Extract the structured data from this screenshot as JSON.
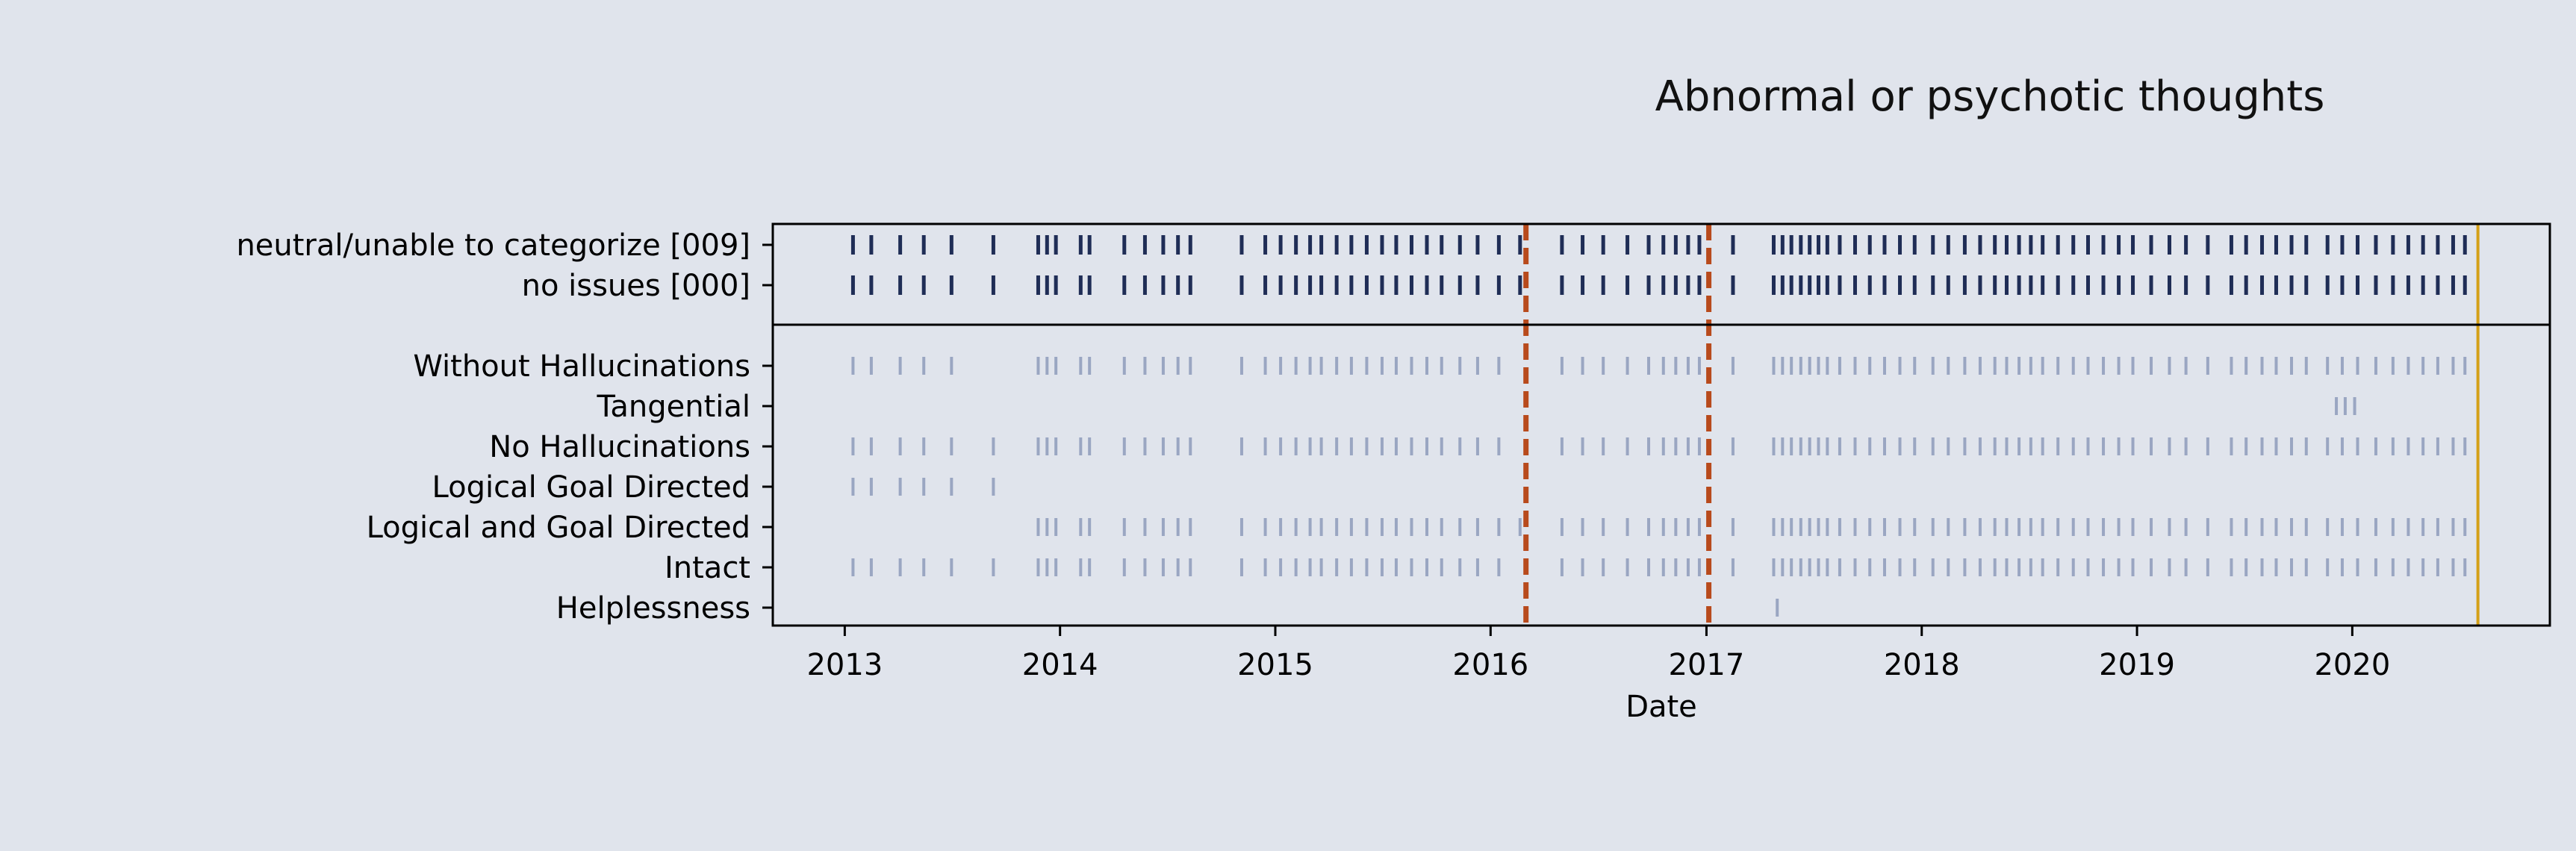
{
  "chart_data": {
    "type": "event-plot",
    "title": "Abnormal or psychotic thoughts",
    "xlabel": "Date",
    "x_ticks": [
      "2013",
      "2014",
      "2015",
      "2016",
      "2017",
      "2018",
      "2019",
      "2020"
    ],
    "xlim": [
      "2012-09-01",
      "2020-12-01"
    ],
    "rows_top": [
      "neutral/unable to categorize [009]",
      "no issues [000]"
    ],
    "rows_bottom": [
      "Without Hallucinations",
      "Tangential",
      "No Hallucinations",
      "Logical Goal Directed",
      "Logical and Goal Directed",
      "Intact",
      "Helplessness"
    ],
    "events_by_row": {
      "neutral/unable to categorize [009]": [
        "2013-01-15",
        "2013-02-15",
        "2013-04-05",
        "2013-05-15",
        "2013-07-01",
        "2013-09-10",
        "2013-11-25",
        "2013-12-10",
        "2013-12-25",
        "2014-02-05",
        "2014-02-20",
        "2014-04-20",
        "2014-05-25",
        "2014-06-25",
        "2014-07-20",
        "2014-08-10",
        "2014-11-05",
        "2014-12-15",
        "2015-01-10",
        "2015-02-05",
        "2015-03-01",
        "2015-03-20",
        "2015-04-15",
        "2015-05-10",
        "2015-06-05",
        "2015-07-01",
        "2015-07-25",
        "2015-08-20",
        "2015-09-15",
        "2015-10-10",
        "2015-11-10",
        "2015-12-10",
        "2016-01-15",
        "2016-02-20",
        "2016-05-01",
        "2016-06-05",
        "2016-07-10",
        "2016-08-20",
        "2016-09-25",
        "2016-10-20",
        "2016-11-10",
        "2016-12-01",
        "2016-12-20",
        "2017-02-15",
        "2017-04-25",
        "2017-05-10",
        "2017-05-25",
        "2017-06-10",
        "2017-06-25",
        "2017-07-10",
        "2017-07-25",
        "2017-08-15",
        "2017-09-10",
        "2017-10-05",
        "2017-10-30",
        "2017-11-25",
        "2017-12-20",
        "2018-01-20",
        "2018-02-15",
        "2018-03-15",
        "2018-04-10",
        "2018-05-05",
        "2018-05-25",
        "2018-06-15",
        "2018-07-05",
        "2018-07-25",
        "2018-08-20",
        "2018-09-15",
        "2018-10-10",
        "2018-11-05",
        "2018-12-01",
        "2018-12-25",
        "2019-01-25",
        "2019-02-25",
        "2019-03-25",
        "2019-05-01",
        "2019-06-10",
        "2019-07-05",
        "2019-08-01",
        "2019-08-25",
        "2019-09-20",
        "2019-10-15",
        "2019-11-20",
        "2019-12-15",
        "2020-01-10",
        "2020-02-10",
        "2020-03-10",
        "2020-04-05",
        "2020-04-30",
        "2020-05-25",
        "2020-06-20",
        "2020-07-10"
      ],
      "no issues [000]": [
        "2013-01-15",
        "2013-02-15",
        "2013-04-05",
        "2013-05-15",
        "2013-07-01",
        "2013-09-10",
        "2013-11-25",
        "2013-12-10",
        "2013-12-25",
        "2014-02-05",
        "2014-02-20",
        "2014-04-20",
        "2014-05-25",
        "2014-06-25",
        "2014-07-20",
        "2014-08-10",
        "2014-11-05",
        "2014-12-15",
        "2015-01-10",
        "2015-02-05",
        "2015-03-01",
        "2015-03-20",
        "2015-04-15",
        "2015-05-10",
        "2015-06-05",
        "2015-07-01",
        "2015-07-25",
        "2015-08-20",
        "2015-09-15",
        "2015-10-10",
        "2015-11-10",
        "2015-12-10",
        "2016-01-15",
        "2016-02-20",
        "2016-05-01",
        "2016-06-05",
        "2016-07-10",
        "2016-08-20",
        "2016-09-25",
        "2016-10-20",
        "2016-11-10",
        "2016-12-01",
        "2016-12-20",
        "2017-02-15",
        "2017-04-25",
        "2017-05-10",
        "2017-05-25",
        "2017-06-10",
        "2017-06-25",
        "2017-07-10",
        "2017-07-25",
        "2017-08-15",
        "2017-09-10",
        "2017-10-05",
        "2017-10-30",
        "2017-11-25",
        "2017-12-20",
        "2018-01-20",
        "2018-02-15",
        "2018-03-15",
        "2018-04-10",
        "2018-05-05",
        "2018-05-25",
        "2018-06-15",
        "2018-07-05",
        "2018-07-25",
        "2018-08-20",
        "2018-09-15",
        "2018-10-10",
        "2018-11-05",
        "2018-12-01",
        "2018-12-25",
        "2019-01-25",
        "2019-02-25",
        "2019-03-25",
        "2019-05-01",
        "2019-06-10",
        "2019-07-05",
        "2019-08-01",
        "2019-08-25",
        "2019-09-20",
        "2019-10-15",
        "2019-11-20",
        "2019-12-15",
        "2020-01-10",
        "2020-02-10",
        "2020-03-10",
        "2020-04-05",
        "2020-04-30",
        "2020-05-25",
        "2020-06-20",
        "2020-07-10"
      ],
      "Without Hallucinations": [
        "2013-01-15",
        "2013-02-15",
        "2013-04-05",
        "2013-05-15",
        "2013-07-01",
        "2013-11-25",
        "2013-12-10",
        "2013-12-25",
        "2014-02-05",
        "2014-02-20",
        "2014-04-20",
        "2014-05-25",
        "2014-06-25",
        "2014-07-20",
        "2014-08-10",
        "2014-11-05",
        "2014-12-15",
        "2015-01-10",
        "2015-02-05",
        "2015-03-01",
        "2015-03-20",
        "2015-04-15",
        "2015-05-10",
        "2015-06-05",
        "2015-07-01",
        "2015-07-25",
        "2015-08-20",
        "2015-09-15",
        "2015-10-10",
        "2015-11-10",
        "2015-12-10",
        "2016-01-15",
        "2016-05-01",
        "2016-06-05",
        "2016-07-10",
        "2016-08-20",
        "2016-09-25",
        "2016-10-20",
        "2016-11-10",
        "2016-12-01",
        "2016-12-20",
        "2017-02-15",
        "2017-04-25",
        "2017-05-10",
        "2017-05-25",
        "2017-06-10",
        "2017-06-25",
        "2017-07-10",
        "2017-07-25",
        "2017-08-15",
        "2017-09-10",
        "2017-10-05",
        "2017-10-30",
        "2017-11-25",
        "2017-12-20",
        "2018-01-20",
        "2018-02-15",
        "2018-03-15",
        "2018-04-10",
        "2018-05-05",
        "2018-05-25",
        "2018-06-15",
        "2018-07-05",
        "2018-07-25",
        "2018-08-20",
        "2018-09-15",
        "2018-10-10",
        "2018-11-05",
        "2018-12-01",
        "2018-12-25",
        "2019-01-25",
        "2019-02-25",
        "2019-03-25",
        "2019-05-01",
        "2019-06-10",
        "2019-07-05",
        "2019-08-01",
        "2019-08-25",
        "2019-09-20",
        "2019-10-15",
        "2019-11-20",
        "2019-12-15",
        "2020-01-10",
        "2020-02-10",
        "2020-03-10",
        "2020-04-05",
        "2020-04-30",
        "2020-05-25",
        "2020-06-20",
        "2020-07-10"
      ],
      "Tangential": [
        "2019-12-05",
        "2019-12-20",
        "2020-01-05"
      ],
      "No Hallucinations": [
        "2013-01-15",
        "2013-02-15",
        "2013-04-05",
        "2013-05-15",
        "2013-07-01",
        "2013-09-10",
        "2013-11-25",
        "2013-12-10",
        "2013-12-25",
        "2014-02-05",
        "2014-02-20",
        "2014-04-20",
        "2014-05-25",
        "2014-06-25",
        "2014-07-20",
        "2014-08-10",
        "2014-11-05",
        "2014-12-15",
        "2015-01-10",
        "2015-02-05",
        "2015-03-01",
        "2015-03-20",
        "2015-04-15",
        "2015-05-10",
        "2015-06-05",
        "2015-07-01",
        "2015-07-25",
        "2015-08-20",
        "2015-09-15",
        "2015-10-10",
        "2015-11-10",
        "2015-12-10",
        "2016-01-15",
        "2016-05-01",
        "2016-06-05",
        "2016-07-10",
        "2016-08-20",
        "2016-09-25",
        "2016-10-20",
        "2016-11-10",
        "2016-12-01",
        "2016-12-20",
        "2017-02-15",
        "2017-04-25",
        "2017-05-10",
        "2017-05-25",
        "2017-06-10",
        "2017-06-25",
        "2017-07-10",
        "2017-07-25",
        "2017-08-15",
        "2017-09-10",
        "2017-10-05",
        "2017-10-30",
        "2017-11-25",
        "2017-12-20",
        "2018-01-20",
        "2018-02-15",
        "2018-03-15",
        "2018-04-10",
        "2018-05-05",
        "2018-05-25",
        "2018-06-15",
        "2018-07-05",
        "2018-07-25",
        "2018-08-20",
        "2018-09-15",
        "2018-10-10",
        "2018-11-05",
        "2018-12-01",
        "2018-12-25",
        "2019-01-25",
        "2019-02-25",
        "2019-03-25",
        "2019-05-01",
        "2019-06-10",
        "2019-07-05",
        "2019-08-01",
        "2019-08-25",
        "2019-09-20",
        "2019-10-15",
        "2019-11-20",
        "2019-12-15",
        "2020-01-10",
        "2020-02-10",
        "2020-03-10",
        "2020-04-05",
        "2020-04-30",
        "2020-05-25",
        "2020-06-20",
        "2020-07-10"
      ],
      "Logical Goal Directed": [
        "2013-01-15",
        "2013-02-15",
        "2013-04-05",
        "2013-05-15",
        "2013-07-01",
        "2013-09-10"
      ],
      "Logical and Goal Directed": [
        "2013-11-25",
        "2013-12-10",
        "2013-12-25",
        "2014-02-05",
        "2014-02-20",
        "2014-04-20",
        "2014-05-25",
        "2014-06-25",
        "2014-07-20",
        "2014-08-10",
        "2014-11-05",
        "2014-12-15",
        "2015-01-10",
        "2015-02-05",
        "2015-03-01",
        "2015-03-20",
        "2015-04-15",
        "2015-05-10",
        "2015-06-05",
        "2015-07-01",
        "2015-07-25",
        "2015-08-20",
        "2015-09-15",
        "2015-10-10",
        "2015-11-10",
        "2015-12-10",
        "2016-01-15",
        "2016-02-20",
        "2016-05-01",
        "2016-06-05",
        "2016-07-10",
        "2016-08-20",
        "2016-09-25",
        "2016-10-20",
        "2016-11-10",
        "2016-12-01",
        "2016-12-20",
        "2017-02-15",
        "2017-04-25",
        "2017-05-10",
        "2017-05-25",
        "2017-06-10",
        "2017-06-25",
        "2017-07-10",
        "2017-07-25",
        "2017-08-15",
        "2017-09-10",
        "2017-10-05",
        "2017-10-30",
        "2017-11-25",
        "2017-12-20",
        "2018-01-20",
        "2018-02-15",
        "2018-03-15",
        "2018-04-10",
        "2018-05-05",
        "2018-05-25",
        "2018-06-15",
        "2018-07-05",
        "2018-07-25",
        "2018-08-20",
        "2018-09-15",
        "2018-10-10",
        "2018-11-05",
        "2018-12-01",
        "2018-12-25",
        "2019-01-25",
        "2019-02-25",
        "2019-03-25",
        "2019-05-01",
        "2019-06-10",
        "2019-07-05",
        "2019-08-01",
        "2019-08-25",
        "2019-09-20",
        "2019-10-15",
        "2019-11-20",
        "2019-12-15",
        "2020-01-10",
        "2020-02-10",
        "2020-03-10",
        "2020-04-05",
        "2020-04-30",
        "2020-05-25",
        "2020-06-20",
        "2020-07-10"
      ],
      "Intact": [
        "2013-01-15",
        "2013-02-15",
        "2013-04-05",
        "2013-05-15",
        "2013-07-01",
        "2013-09-10",
        "2013-11-25",
        "2013-12-10",
        "2013-12-25",
        "2014-02-05",
        "2014-02-20",
        "2014-04-20",
        "2014-05-25",
        "2014-06-25",
        "2014-07-20",
        "2014-08-10",
        "2014-11-05",
        "2014-12-15",
        "2015-01-10",
        "2015-02-05",
        "2015-03-01",
        "2015-03-20",
        "2015-04-15",
        "2015-05-10",
        "2015-06-05",
        "2015-07-01",
        "2015-07-25",
        "2015-08-20",
        "2015-09-15",
        "2015-10-10",
        "2015-11-10",
        "2015-12-10",
        "2016-01-15",
        "2016-05-01",
        "2016-06-05",
        "2016-07-10",
        "2016-08-20",
        "2016-09-25",
        "2016-10-20",
        "2016-11-10",
        "2016-12-01",
        "2016-12-20",
        "2017-02-15",
        "2017-04-25",
        "2017-05-10",
        "2017-05-25",
        "2017-06-10",
        "2017-06-25",
        "2017-07-10",
        "2017-07-25",
        "2017-08-15",
        "2017-09-10",
        "2017-10-05",
        "2017-10-30",
        "2017-11-25",
        "2017-12-20",
        "2018-01-20",
        "2018-02-15",
        "2018-03-15",
        "2018-04-10",
        "2018-05-05",
        "2018-05-25",
        "2018-06-15",
        "2018-07-05",
        "2018-07-25",
        "2018-08-20",
        "2018-09-15",
        "2018-10-10",
        "2018-11-05",
        "2018-12-01",
        "2018-12-25",
        "2019-01-25",
        "2019-02-25",
        "2019-03-25",
        "2019-05-01",
        "2019-06-10",
        "2019-07-05",
        "2019-08-01",
        "2019-08-25",
        "2019-09-20",
        "2019-10-15",
        "2019-11-20",
        "2019-12-15",
        "2020-01-10",
        "2020-02-10",
        "2020-03-10",
        "2020-04-05",
        "2020-04-30",
        "2020-05-25",
        "2020-06-20",
        "2020-07-10"
      ],
      "Helplessness": [
        "2017-05-01"
      ]
    },
    "vertical_lines": [
      {
        "date": "2016-03-01",
        "style": "dashed",
        "color": "#b84a1c"
      },
      {
        "date": "2017-01-05",
        "style": "dashed",
        "color": "#b84a1c"
      },
      {
        "date": "2020-08-01",
        "style": "solid",
        "color": "#d4a017"
      }
    ],
    "colors": {
      "top_events": "#1f2d56",
      "bottom_events": "#9aa6c2",
      "background": "#e0e4ec"
    }
  }
}
